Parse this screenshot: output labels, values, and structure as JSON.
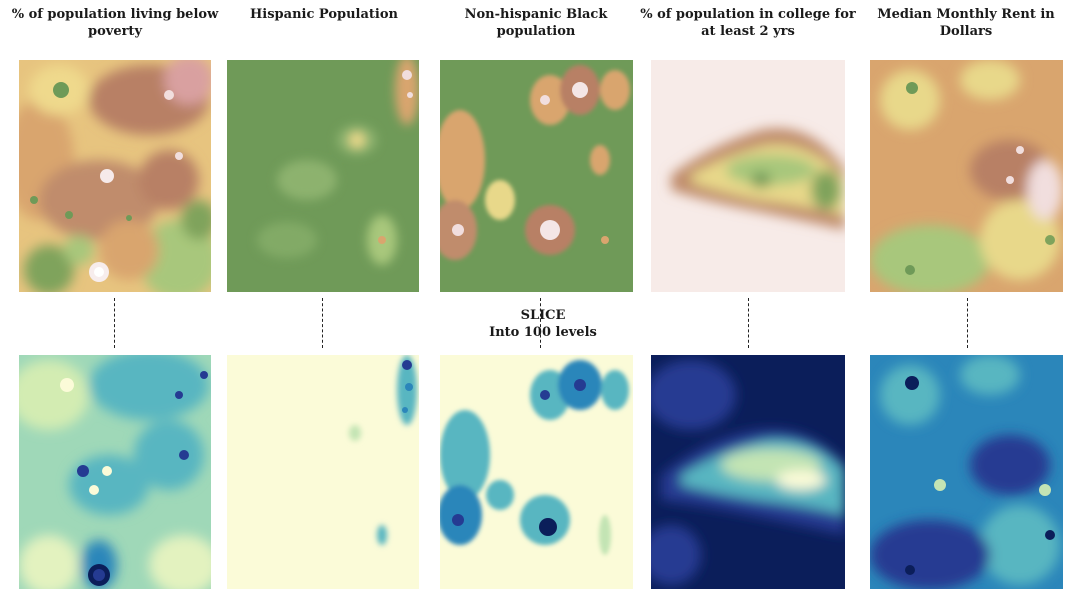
{
  "columns": [
    {
      "title_line1": "% of population living below",
      "title_line2": "poverty",
      "top_palette": "earth",
      "bottom_palette": "bluegreen"
    },
    {
      "title_line1": "Hispanic Population",
      "title_line2": "",
      "top_palette": "earth",
      "bottom_palette": "bluegreen"
    },
    {
      "title_line1": "Non-hispanic Black",
      "title_line2": "population",
      "top_palette": "earth",
      "bottom_palette": "bluegreen"
    },
    {
      "title_line1": "% of population in college for",
      "title_line2": "at least 2 yrs",
      "top_palette": "earth",
      "bottom_palette": "bluegreen"
    },
    {
      "title_line1": "Median Monthly Rent in",
      "title_line2": "Dollars",
      "top_palette": "earth",
      "bottom_palette": "bluegreen"
    }
  ],
  "slice": {
    "line1": "SLICE",
    "line2": "Into 100 levels"
  },
  "colors": {
    "earth_green": "#6f9a58",
    "earth_light_green": "#a8c77c",
    "earth_yellow": "#eed98a",
    "earth_tan": "#d9a56e",
    "earth_brown": "#b88065",
    "earth_pink": "#f1dede",
    "blue_pale": "#fbfbd8",
    "blue_light": "#c3e4b4",
    "blue_teal": "#58b6c1",
    "blue_mid": "#2b86ba",
    "blue_dark": "#253b92",
    "blue_navy": "#0b1e5a"
  }
}
